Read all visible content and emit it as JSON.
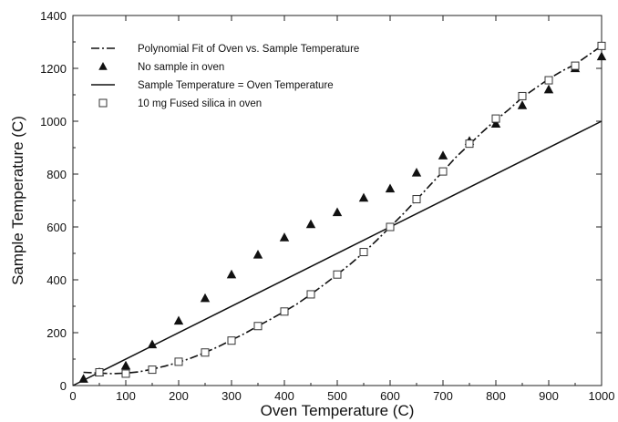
{
  "chart_data": {
    "type": "scatter",
    "xlabel": "Oven Temperature (C)",
    "ylabel": "Sample Temperature (C)",
    "xlim": [
      0,
      1000
    ],
    "ylim": [
      0,
      1400
    ],
    "x_ticks": [
      0,
      100,
      200,
      300,
      400,
      500,
      600,
      700,
      800,
      900,
      1000
    ],
    "y_ticks": [
      0,
      200,
      400,
      600,
      800,
      1000,
      1200,
      1400
    ],
    "grid": false,
    "legend_position": "top-left",
    "series": [
      {
        "name": "Polynomial Fit of Oven vs. Sample Temperature",
        "kind": "line",
        "style": "dash-dot",
        "x": [
          20,
          50,
          75,
          100,
          125,
          150,
          175,
          200,
          225,
          250,
          275,
          300,
          325,
          350,
          375,
          400,
          425,
          450,
          475,
          500,
          525,
          550,
          575,
          600,
          625,
          650,
          675,
          700,
          725,
          750,
          775,
          800,
          825,
          850,
          875,
          900,
          925,
          950,
          975,
          1000
        ],
        "y": [
          50,
          47,
          45,
          47,
          52,
          62,
          74,
          88,
          105,
          125,
          147,
          172,
          197,
          225,
          252,
          280,
          310,
          345,
          382,
          420,
          460,
          503,
          550,
          600,
          650,
          703,
          757,
          810,
          865,
          912,
          960,
          1005,
          1045,
          1090,
          1125,
          1160,
          1190,
          1215,
          1250,
          1285
        ]
      },
      {
        "name": "No sample in oven",
        "kind": "scatter",
        "marker": "filled-triangle",
        "x": [
          20,
          50,
          100,
          150,
          200,
          250,
          300,
          350,
          400,
          450,
          500,
          550,
          600,
          650,
          700,
          750,
          800,
          850,
          900,
          950,
          1000
        ],
        "y": [
          25,
          50,
          75,
          155,
          245,
          330,
          420,
          495,
          560,
          610,
          655,
          710,
          745,
          805,
          870,
          925,
          990,
          1060,
          1120,
          1200,
          1245
        ]
      },
      {
        "name": "Sample Temperature = Oven Temperature",
        "kind": "line",
        "style": "solid",
        "x": [
          0,
          1000
        ],
        "y": [
          0,
          1000
        ]
      },
      {
        "name": "10 mg Fused silica in oven",
        "kind": "scatter",
        "marker": "open-square",
        "x": [
          50,
          100,
          150,
          200,
          250,
          300,
          350,
          400,
          450,
          500,
          550,
          600,
          650,
          700,
          750,
          800,
          850,
          900,
          950,
          1000
        ],
        "y": [
          50,
          45,
          60,
          90,
          125,
          170,
          225,
          280,
          345,
          420,
          505,
          600,
          705,
          810,
          915,
          1010,
          1095,
          1155,
          1210,
          1285
        ]
      }
    ]
  }
}
